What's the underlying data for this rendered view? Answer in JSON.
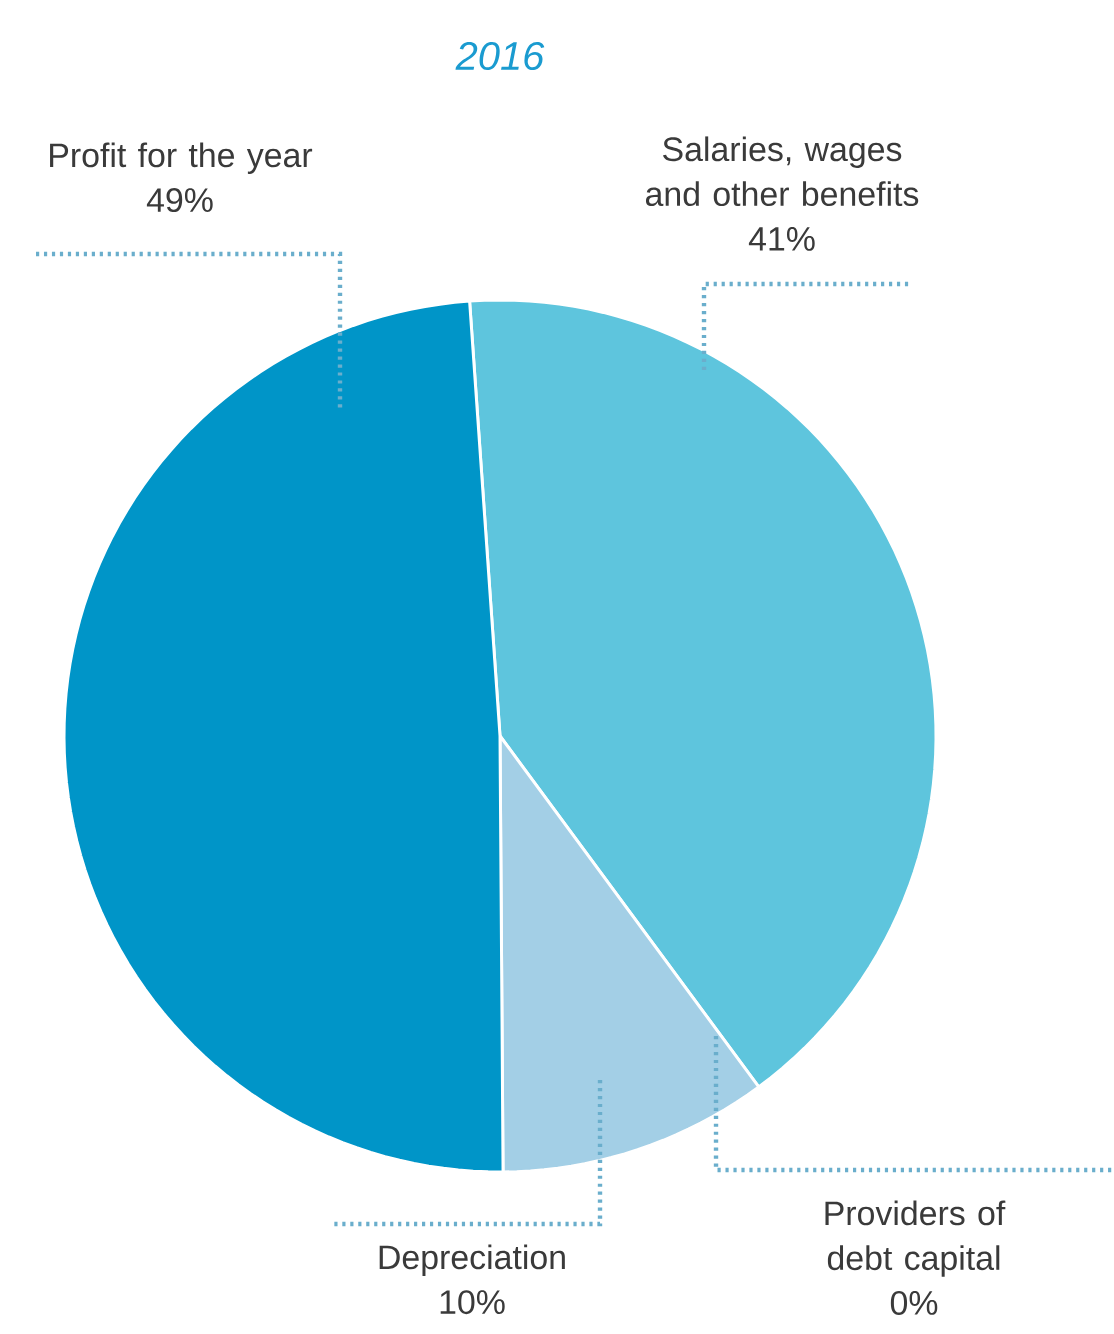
{
  "chart_data": {
    "type": "pie",
    "title": "2016",
    "categories": [
      "Salaries, wages and other benefits",
      "Providers of debt capital",
      "Depreciation",
      "Profit for the year"
    ],
    "values": [
      41,
      0,
      10,
      49
    ],
    "colors": [
      "#5ec5dd",
      "#1f6fa8",
      "#a3cfe6",
      "#0095c8"
    ],
    "value_labels": [
      "41%",
      "0%",
      "10%",
      "49%"
    ]
  }
}
